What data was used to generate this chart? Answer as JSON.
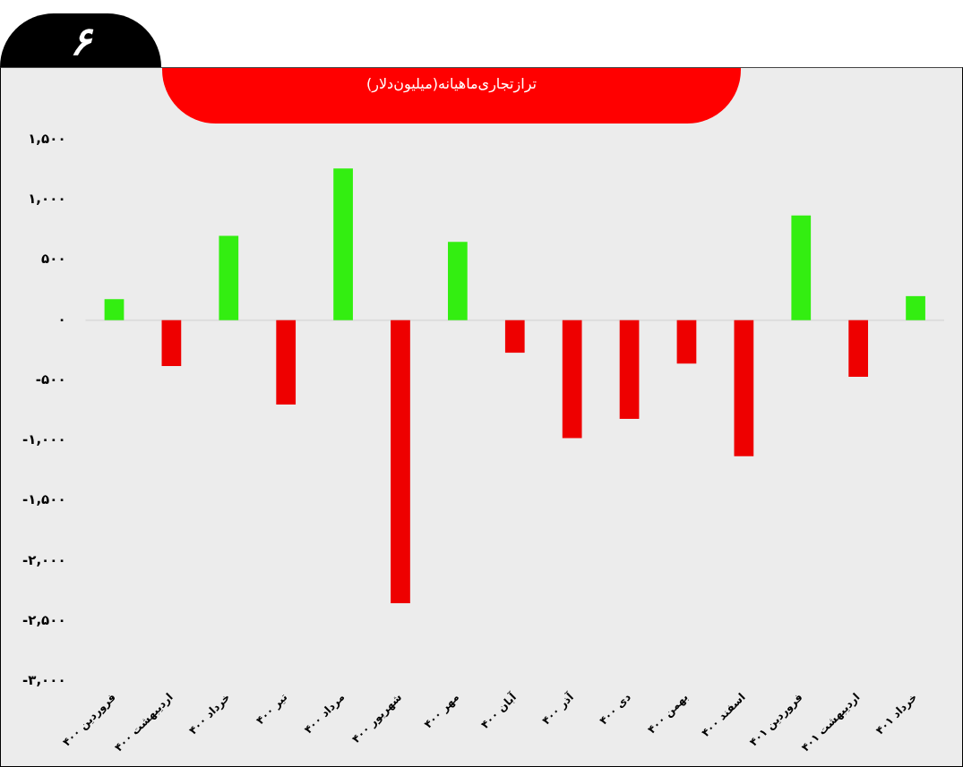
{
  "chart_data": {
    "type": "bar",
    "title": "ترازتجاری‌ماهیانه(میلیون‌دلار)",
    "annotations": [
      "۶"
    ],
    "categories": [
      "فروردین ۴۰۰",
      "اردیبهشت ۴۰۰",
      "خرداد ۴۰۰",
      "تیر ۴۰۰",
      "مرداد ۴۰۰",
      "شهریور ۴۰۰",
      "مهر ۴۰۰",
      "آبان ۴۰۰",
      "آذر ۴۰۰",
      "دی ۴۰۰",
      "بهمن ۴۰۰",
      "اسفند ۴۰۰",
      "فروردین ۴۰۱",
      "اردیبهشت ۴۰۱",
      "خرداد ۴۰۱"
    ],
    "values": [
      175,
      -380,
      700,
      -700,
      1260,
      -2350,
      650,
      -270,
      -980,
      -820,
      -360,
      -1130,
      870,
      -470,
      200
    ],
    "colors": [
      "#33ee11",
      "#ee0000",
      "#33ee11",
      "#ee0000",
      "#33ee11",
      "#ee0000",
      "#33ee11",
      "#ee0000",
      "#ee0000",
      "#ee0000",
      "#ee0000",
      "#ee0000",
      "#33ee11",
      "#ee0000",
      "#33ee11"
    ],
    "ylim": [
      -3000,
      1500
    ],
    "yticks": [
      {
        "value": 1500,
        "label": "۱,۵۰۰"
      },
      {
        "value": 1000,
        "label": "۱,۰۰۰"
      },
      {
        "value": 500,
        "label": "۵۰۰"
      },
      {
        "value": 0,
        "label": "۰"
      },
      {
        "value": -500,
        "label": "-۵۰۰"
      },
      {
        "value": -1000,
        "label": "-۱,۰۰۰"
      },
      {
        "value": -1500,
        "label": "-۱,۵۰۰"
      },
      {
        "value": -2000,
        "label": "-۲,۰۰۰"
      },
      {
        "value": -2500,
        "label": "-۲,۵۰۰"
      },
      {
        "value": -3000,
        "label": "-۳,۰۰۰"
      }
    ]
  }
}
